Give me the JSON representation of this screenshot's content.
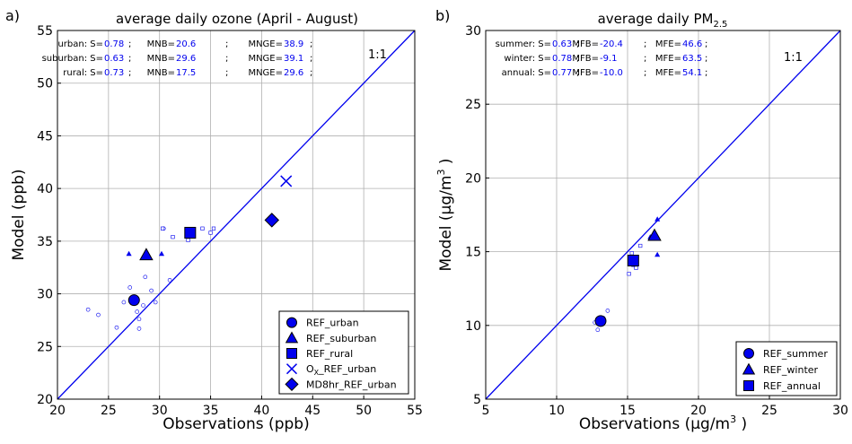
{
  "chart_data": [
    {
      "type": "scatter",
      "panel_label": "a)",
      "title": "average daily ozone (April - August)",
      "xlabel": "Observations (ppb)",
      "ylabel": "Model (ppb)",
      "xlim": [
        20,
        55
      ],
      "ylim": [
        20,
        55
      ],
      "xticks": [
        "20",
        "25",
        "30",
        "35",
        "40",
        "45",
        "50",
        "55"
      ],
      "yticks": [
        "20",
        "25",
        "30",
        "35",
        "40",
        "45",
        "50",
        "55"
      ],
      "grid": true,
      "one_to_one_label": "1:1",
      "legend_position": "lower-right",
      "color": "#0000ee",
      "stats": [
        {
          "label": "urban: S=",
          "s": "0.78",
          "b_label": "MNB=",
          "b": "20.6",
          "e_label": "MNGE=",
          "e": "38.9"
        },
        {
          "label": "suburban: S=",
          "s": "0.63",
          "b_label": "MNB=",
          "b": "29.6",
          "e_label": "MNGE=",
          "e": "39.1"
        },
        {
          "label": "rural: S=",
          "s": "0.73",
          "b_label": "MNB=",
          "b": "17.5",
          "e_label": "MNGE=",
          "e": "29.6"
        }
      ],
      "series": [
        {
          "name": "REF_urban",
          "marker": "circle",
          "points": [
            [
              23,
              28.5
            ],
            [
              24,
              28
            ],
            [
              25.8,
              26.8
            ],
            [
              26.5,
              29.2
            ],
            [
              27.8,
              28.3
            ],
            [
              28,
              27.6
            ],
            [
              28,
              26.7
            ],
            [
              28.6,
              31.6
            ],
            [
              29.2,
              30.3
            ],
            [
              29.6,
              29.2
            ],
            [
              30.4,
              36.2
            ],
            [
              31,
              31.3
            ],
            [
              27.1,
              30.6
            ],
            [
              28.4,
              28.9
            ]
          ],
          "mean": [
            27.5,
            29.4
          ]
        },
        {
          "name": "REF_suburban",
          "marker": "triangle",
          "points": [
            [
              27,
              33.8
            ],
            [
              30.2,
              33.8
            ]
          ],
          "mean": [
            28.7,
            33.7
          ]
        },
        {
          "name": "REF_rural",
          "marker": "square",
          "points": [
            [
              30.3,
              36.2
            ],
            [
              31.3,
              35.4
            ],
            [
              32.8,
              35.1
            ],
            [
              34.2,
              36.2
            ],
            [
              35,
              35.8
            ],
            [
              35.3,
              36.2
            ]
          ],
          "mean": [
            33,
            35.8
          ]
        },
        {
          "name": "O$_X$_REF_urban",
          "legend_label": "O",
          "legend_sub": "X",
          "legend_rest": "_REF_urban",
          "marker": "x",
          "points": [],
          "mean": [
            42.4,
            40.7
          ]
        },
        {
          "name": "MD8hr_REF_urban",
          "marker": "diamond",
          "points": [],
          "mean": [
            41,
            37
          ]
        }
      ]
    },
    {
      "type": "scatter",
      "panel_label": "b)",
      "title_main": "average daily PM",
      "title_sub": "2.5",
      "xlabel": "Observations (µg/m",
      "xlabel_sup": "3",
      "xlabel_end": " )",
      "ylabel": "Model (µg/m",
      "ylabel_sup": "3",
      "ylabel_end": " )",
      "xlim": [
        5,
        30
      ],
      "ylim": [
        5,
        30
      ],
      "xticks": [
        "5",
        "10",
        "15",
        "20",
        "25",
        "30"
      ],
      "yticks": [
        "5",
        "10",
        "15",
        "20",
        "25",
        "30"
      ],
      "grid": true,
      "one_to_one_label": "1:1",
      "legend_position": "lower-right",
      "color": "#0000ee",
      "stats": [
        {
          "label": "summer: S=",
          "s": "0.63",
          "b_label": "MFB=",
          "b": "-20.4",
          "e_label": "MFE=",
          "e": "46.6"
        },
        {
          "label": "winter: S=",
          "s": "0.78",
          "b_label": "MFB=",
          "b": "-9.1",
          "e_label": "MFE=",
          "e": "63.5"
        },
        {
          "label": "annual: S=",
          "s": "0.77",
          "b_label": "MFB=",
          "b": "-10.0",
          "e_label": "MFE=",
          "e": "54.1"
        }
      ],
      "series": [
        {
          "name": "REF_summer",
          "marker": "circle",
          "points": [
            [
              12.7,
              10.2
            ],
            [
              12.9,
              9.7
            ],
            [
              13.3,
              10.5
            ],
            [
              13.6,
              11
            ]
          ],
          "mean": [
            13.1,
            10.3
          ]
        },
        {
          "name": "REF_winter",
          "marker": "triangle",
          "points": [
            [
              17.1,
              17.2
            ],
            [
              17.1,
              14.8
            ],
            [
              16.6,
              16
            ]
          ],
          "mean": [
            16.9,
            16.1
          ]
        },
        {
          "name": "REF_annual",
          "marker": "square",
          "points": [
            [
              15.1,
              13.5
            ],
            [
              15.3,
              14.9
            ],
            [
              15.6,
              13.9
            ],
            [
              15.9,
              15.4
            ],
            [
              15.4,
              14.1
            ]
          ],
          "mean": [
            15.4,
            14.4
          ]
        }
      ]
    }
  ]
}
